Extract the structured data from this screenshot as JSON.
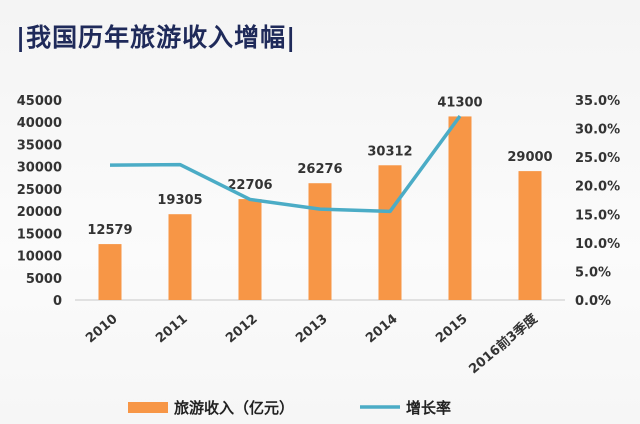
{
  "title": "|我国历年旅游收入增幅|",
  "chart_data": {
    "type": "bar",
    "categories": [
      "2010",
      "2011",
      "2012",
      "2013",
      "2014",
      "2015",
      "2016前3季度"
    ],
    "series": [
      {
        "name": "旅游收入（亿元）",
        "type": "bar",
        "axis": "left",
        "color": "#f79646",
        "values": [
          12579,
          19305,
          22706,
          26276,
          30312,
          41300,
          29000
        ]
      },
      {
        "name": "增长率",
        "type": "line",
        "axis": "right",
        "color": "#4bacc6",
        "values": [
          0.236,
          0.237,
          0.176,
          0.159,
          0.155,
          0.322,
          null
        ]
      }
    ],
    "data_labels": [
      "12579",
      "19305",
      "22706",
      "26276",
      "30312",
      "41300",
      "29000"
    ],
    "ylim_left": [
      0,
      45000
    ],
    "yticks_left": [
      "0",
      "5000",
      "10000",
      "15000",
      "20000",
      "25000",
      "30000",
      "35000",
      "40000",
      "45000"
    ],
    "ylim_right": [
      0,
      0.35
    ],
    "yticks_right": [
      "0.0%",
      "5.0%",
      "10.0%",
      "15.0%",
      "20.0%",
      "25.0%",
      "30.0%",
      "35.0%"
    ],
    "grid": false,
    "legend_position": "bottom"
  }
}
